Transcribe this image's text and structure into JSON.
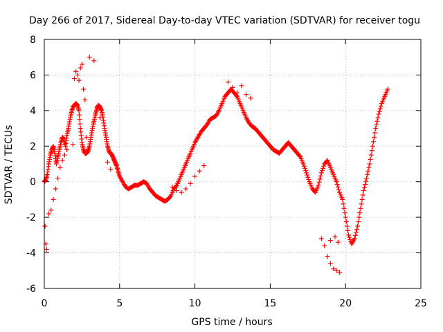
{
  "chart_data": {
    "type": "scatter",
    "title": "Day 266 of 2017, Sidereal Day-to-day VTEC variation (SDTVAR) for receiver togu",
    "xlabel": "GPS time / hours",
    "ylabel": "SDTVAR / TECUs",
    "xlim": [
      0,
      25
    ],
    "ylim": [
      -6,
      8
    ],
    "xticks": [
      0,
      5,
      10,
      15,
      20,
      25
    ],
    "yticks": [
      -6,
      -4,
      -2,
      0,
      2,
      4,
      6,
      8
    ],
    "grid": true,
    "marker": "+",
    "series": [
      {
        "name": "SDTVAR",
        "color": "#ff0000",
        "x": [
          0.0,
          0.1,
          0.2,
          0.3,
          0.4,
          0.5,
          0.6,
          0.7,
          0.8,
          0.9,
          1.0,
          1.1,
          1.2,
          1.3,
          1.4,
          1.5,
          1.6,
          1.7,
          1.8,
          1.9,
          2.0,
          2.1,
          2.2,
          2.3,
          2.4,
          2.5,
          2.6,
          2.7,
          2.8,
          2.9,
          3.0,
          3.1,
          3.2,
          3.3,
          3.4,
          3.5,
          3.6,
          3.7,
          3.8,
          3.9,
          4.0,
          4.1,
          4.2,
          4.3,
          4.4,
          4.5,
          4.6,
          4.7,
          4.8,
          4.9,
          5.0,
          5.2,
          5.4,
          5.6,
          5.8,
          6.0,
          6.2,
          6.4,
          6.6,
          6.8,
          7.0,
          7.2,
          7.4,
          7.6,
          7.8,
          8.0,
          8.2,
          8.4,
          8.6,
          8.8,
          9.0,
          9.2,
          9.4,
          9.6,
          9.8,
          10.0,
          10.2,
          10.4,
          10.6,
          10.8,
          11.0,
          11.2,
          11.4,
          11.6,
          11.8,
          12.0,
          12.2,
          12.4,
          12.6,
          12.8,
          13.0,
          13.2,
          13.4,
          13.6,
          13.8,
          14.0,
          14.2,
          14.4,
          14.6,
          14.8,
          15.0,
          15.2,
          15.4,
          15.6,
          15.8,
          16.0,
          16.2,
          16.4,
          16.6,
          16.8,
          17.0,
          17.2,
          17.4,
          17.6,
          17.8,
          18.0,
          18.2,
          18.4,
          18.6,
          18.8,
          19.0,
          19.2,
          19.4,
          19.6,
          19.8,
          20.0,
          20.2,
          20.4,
          20.6,
          20.8,
          21.0,
          21.2,
          21.4,
          21.6,
          21.8,
          22.0,
          22.2,
          22.4,
          22.6,
          22.8
        ],
        "y": [
          0.0,
          0.1,
          0.4,
          1.0,
          1.5,
          1.8,
          2.0,
          1.6,
          1.0,
          1.4,
          1.8,
          2.2,
          2.5,
          2.4,
          2.0,
          2.6,
          3.0,
          3.5,
          3.9,
          4.2,
          4.3,
          4.4,
          4.3,
          4.0,
          3.0,
          2.2,
          1.8,
          1.6,
          1.6,
          1.7,
          2.0,
          2.5,
          3.0,
          3.4,
          3.8,
          4.1,
          4.3,
          4.2,
          4.0,
          3.6,
          3.0,
          2.5,
          2.0,
          1.7,
          1.6,
          1.5,
          1.3,
          1.1,
          0.9,
          0.6,
          0.3,
          0.0,
          -0.3,
          -0.4,
          -0.3,
          -0.2,
          -0.2,
          -0.1,
          0.0,
          -0.1,
          -0.4,
          -0.6,
          -0.8,
          -0.9,
          -1.0,
          -1.1,
          -1.0,
          -0.8,
          -0.4,
          -0.2,
          0.2,
          0.6,
          1.0,
          1.4,
          1.8,
          2.2,
          2.5,
          2.8,
          3.0,
          3.2,
          3.5,
          3.6,
          3.7,
          4.0,
          4.4,
          4.8,
          5.0,
          5.2,
          5.0,
          4.8,
          4.4,
          4.0,
          3.6,
          3.3,
          3.1,
          3.0,
          2.8,
          2.6,
          2.4,
          2.2,
          2.0,
          1.8,
          1.7,
          1.6,
          1.8,
          2.0,
          2.2,
          2.0,
          1.8,
          1.6,
          1.4,
          1.0,
          0.5,
          0.0,
          -0.4,
          -0.6,
          -0.2,
          0.5,
          1.0,
          1.2,
          0.8,
          0.4,
          0.0,
          -0.6,
          -1.0,
          -2.0,
          -3.0,
          -3.5,
          -3.2,
          -2.5,
          -1.5,
          -0.5,
          0.2,
          1.0,
          2.0,
          3.0,
          3.8,
          4.4,
          4.8,
          5.2
        ],
        "extra_points": {
          "x": [
            0.05,
            0.1,
            0.15,
            0.3,
            0.45,
            0.6,
            0.75,
            0.9,
            1.05,
            1.2,
            1.35,
            1.5,
            1.9,
            2.0,
            2.1,
            2.2,
            2.3,
            2.4,
            2.5,
            2.6,
            2.7,
            2.8,
            2.9,
            3.0,
            3.3,
            3.5,
            3.7,
            4.2,
            4.4,
            8.5,
            8.8,
            9.1,
            9.4,
            9.7,
            10.0,
            10.3,
            10.6,
            12.2,
            12.5,
            12.8,
            13.1,
            13.4,
            13.7,
            18.4,
            18.6,
            18.8,
            19.0,
            19.2,
            19.4,
            19.6,
            19.0,
            19.3,
            19.5
          ],
          "y": [
            -2.5,
            -3.5,
            -3.8,
            -1.8,
            -1.6,
            -1.0,
            -0.4,
            0.2,
            0.8,
            1.2,
            1.5,
            1.8,
            2.1,
            5.8,
            6.2,
            6.0,
            5.7,
            6.4,
            6.6,
            5.2,
            4.6,
            2.5,
            1.8,
            7.0,
            6.8,
            4.2,
            3.6,
            1.1,
            0.7,
            -0.3,
            -0.5,
            -0.6,
            -0.4,
            -0.1,
            0.3,
            0.6,
            0.9,
            5.6,
            5.3,
            5.0,
            5.4,
            4.9,
            4.7,
            -3.2,
            -3.6,
            -4.2,
            -4.6,
            -4.9,
            -5.0,
            -5.1,
            -3.3,
            -3.1,
            -3.4
          ]
        }
      }
    ]
  }
}
